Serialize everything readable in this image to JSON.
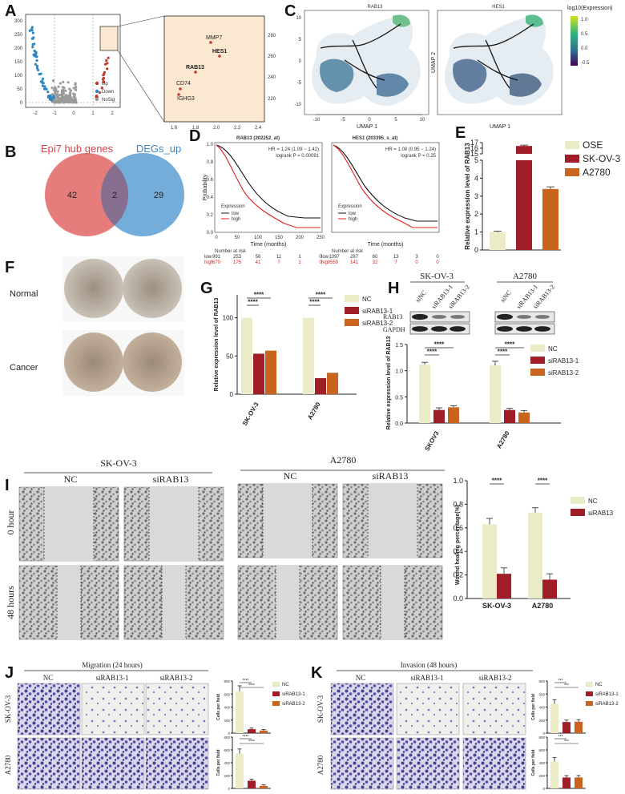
{
  "panels": {
    "A": {
      "letter": "A",
      "legend": [
        "Up",
        "Down",
        "NoSig"
      ],
      "x_ticks": [
        "-2",
        "-1",
        "0",
        "1",
        "2"
      ],
      "y_ticks": [
        "0",
        "50",
        "100",
        "150",
        "200",
        "250",
        "300"
      ],
      "zoom_genes": [
        "MMP7",
        "HES1",
        "RAB13",
        "CD74",
        "IGHG3"
      ],
      "zoom_x_ticks": [
        "1.6",
        "1.8",
        "2.0",
        "2.2",
        "2.4"
      ],
      "zoom_y_ticks": [
        "220",
        "240",
        "260",
        "280"
      ]
    },
    "B": {
      "letter": "B",
      "left_label": "Epi7 hub genes",
      "right_label": "DEGs_up",
      "left_only": "42",
      "overlap": "2",
      "right_only": "29"
    },
    "C": {
      "letter": "C",
      "left_title": "RAB13",
      "right_title": "HES1",
      "xlabel": "UMAP 1",
      "ylabel": "UMAP 2",
      "x_ticks": [
        "-10",
        "-5",
        "0",
        "5",
        "10"
      ],
      "y_ticks": [
        "10",
        "5",
        "0",
        "-5",
        "-10"
      ],
      "colorbar_title": "log10(Expression)",
      "colorbar_ticks": [
        "1.0",
        "0.5",
        "0.0",
        "-0.5"
      ]
    },
    "D": {
      "letter": "D",
      "left": {
        "title": "RAB13 (202252_at)",
        "hr": "HR = 1.24 (1.09 − 1.42)",
        "p": "logrank P = 0.00091",
        "risk_low": [
          "low",
          "991",
          "253",
          "56",
          "11",
          "1",
          "0"
        ],
        "risk_high": [
          "high",
          "670",
          "175",
          "41",
          "7",
          "1",
          "0"
        ]
      },
      "right": {
        "title": "HES1 (203395_s_at)",
        "hr": "HR = 1.08 (0.95 − 1.24)",
        "p": "logrank P = 0.25",
        "risk_low": [
          "low",
          "1097",
          "287",
          "60",
          "13",
          "3",
          "0"
        ],
        "risk_high": [
          "high",
          "559",
          "141",
          "32",
          "7",
          "0",
          "0"
        ]
      },
      "ylabel": "Probability",
      "xlabel": "Time (months)",
      "legend_title": "Expression",
      "legend_low": "low",
      "legend_high": "high",
      "number_at_risk": "Number at risk",
      "x_ticks": [
        "0",
        "50",
        "100",
        "150",
        "200",
        "250"
      ],
      "y_ticks": [
        "0.0",
        "0.2",
        "0.4",
        "0.6",
        "0.8",
        "1.0"
      ]
    },
    "E": {
      "letter": "E"
    },
    "F": {
      "letter": "F",
      "row1": "Normal",
      "row2": "Cancer"
    },
    "G": {
      "letter": "G"
    },
    "H": {
      "letter": "H",
      "blot_groups": [
        "SK-OV-3",
        "A2780"
      ],
      "lane_labels": [
        "siNC",
        "siRAB13-1",
        "siRAB13-2"
      ],
      "bands": [
        "RAB13",
        "GAPDH"
      ]
    },
    "I": {
      "letter": "I",
      "groups": [
        "SK-OV-3",
        "A2780"
      ],
      "conditions": [
        "NC",
        "siRAB13"
      ],
      "rows": [
        "0 hour",
        "48 hours"
      ]
    },
    "J": {
      "letter": "J",
      "title": "Migration (24 hours)",
      "conditions": [
        "NC",
        "siRAB13-1",
        "siRAB13-2"
      ],
      "rows": [
        "SK-OV-3",
        "A2780"
      ]
    },
    "K": {
      "letter": "K",
      "title": "Invasion (48 hours)",
      "conditions": [
        "NC",
        "siRAB13-1",
        "siRAB13-2"
      ],
      "rows": [
        "SK-OV-3",
        "A2780"
      ]
    }
  },
  "chart_data": [
    {
      "id": "E",
      "type": "bar",
      "categories": [
        "OSE",
        "SK-OV-3",
        "A2780"
      ],
      "values": [
        1.0,
        16.4,
        3.4
      ],
      "errors": [
        0.05,
        0.15,
        0.12
      ],
      "legend": [
        "OSE",
        "SK-OV-3",
        "A2780"
      ],
      "ylabel": "Relative expression level of RAB13",
      "y_ticks_low": [
        "0",
        "1",
        "2",
        "3",
        "4",
        "5"
      ],
      "y_ticks_high": [
        "15",
        "16",
        "17"
      ],
      "colors": [
        "#ecebc8",
        "#a01e28",
        "#c8641e"
      ]
    },
    {
      "id": "G",
      "type": "bar",
      "categories": [
        "SK-OV-3",
        "A2780"
      ],
      "series": [
        {
          "name": "NC",
          "values": [
            100,
            100
          ],
          "color": "#ecebc8"
        },
        {
          "name": "siRAB13-1",
          "values": [
            53,
            21
          ],
          "color": "#a01e28"
        },
        {
          "name": "siRAB13-2",
          "values": [
            57,
            28
          ],
          "color": "#c8641e"
        }
      ],
      "ylabel": "Relative expression level of RAB13",
      "y_ticks": [
        "0",
        "50",
        "100"
      ],
      "ylim": [
        0,
        130
      ],
      "significance": [
        "****",
        "****",
        "****",
        "****"
      ]
    },
    {
      "id": "H",
      "type": "bar",
      "categories": [
        "SKOV3",
        "A2780"
      ],
      "series": [
        {
          "name": "NC",
          "values": [
            1.12,
            1.1
          ],
          "errors": [
            0.04,
            0.08
          ],
          "color": "#ecebc8"
        },
        {
          "name": "siRAB13-1",
          "values": [
            0.25,
            0.25
          ],
          "errors": [
            0.04,
            0.03
          ],
          "color": "#a01e28"
        },
        {
          "name": "siRAB13-2",
          "values": [
            0.3,
            0.2
          ],
          "errors": [
            0.03,
            0.04
          ],
          "color": "#c8641e"
        }
      ],
      "ylabel": "Relative expression level of RAB13",
      "y_ticks": [
        "0.0",
        "0.5",
        "1.0",
        "1.5"
      ],
      "ylim": [
        0,
        1.5
      ],
      "significance": [
        "****",
        "****",
        "****",
        "****"
      ]
    },
    {
      "id": "I",
      "type": "bar",
      "categories": [
        "SK-OV-3",
        "A2780"
      ],
      "series": [
        {
          "name": "NC",
          "values": [
            0.63,
            0.73
          ],
          "errors": [
            0.05,
            0.04
          ],
          "color": "#ecebc8"
        },
        {
          "name": "siRAB13",
          "values": [
            0.21,
            0.16
          ],
          "errors": [
            0.05,
            0.05
          ],
          "color": "#a01e28"
        }
      ],
      "ylabel": "Wound healing percentage(%)",
      "y_ticks": [
        "0.0",
        "0.2",
        "0.4",
        "0.6",
        "0.8",
        "1.0"
      ],
      "ylim": [
        0,
        1.0
      ],
      "significance": [
        "****",
        "****"
      ]
    },
    {
      "id": "J-top",
      "type": "bar",
      "categories": [
        "NC",
        "siRAB13-1",
        "siRAB13-2"
      ],
      "values": [
        640,
        60,
        40
      ],
      "ylabel": "Cells per field",
      "y_ticks": [
        "0",
        "200",
        "400",
        "600",
        "800"
      ],
      "ylim": [
        0,
        800
      ],
      "legend": [
        "NC",
        "siRAB13-1",
        "siRAB13-2"
      ],
      "significance": [
        "****",
        "****"
      ]
    },
    {
      "id": "J-bottom",
      "type": "bar",
      "categories": [
        "NC",
        "siRAB13-1",
        "siRAB13-2"
      ],
      "values": [
        540,
        120,
        40
      ],
      "ylabel": "Cells per field",
      "y_ticks": [
        "0",
        "200",
        "400",
        "600",
        "800"
      ],
      "ylim": [
        0,
        800
      ],
      "significance": [
        "****",
        "****"
      ]
    },
    {
      "id": "K-top",
      "type": "bar",
      "categories": [
        "NC",
        "siRAB13-1",
        "siRAB13-2"
      ],
      "values": [
        450,
        170,
        175
      ],
      "ylabel": "Cells per field",
      "y_ticks": [
        "0",
        "200",
        "400",
        "600",
        "800"
      ],
      "ylim": [
        0,
        800
      ],
      "legend": [
        "NC",
        "siRAB13-1",
        "siRAB13-2"
      ],
      "significance": [
        "***",
        "***"
      ]
    },
    {
      "id": "K-bottom",
      "type": "bar",
      "categories": [
        "NC",
        "siRAB13-1",
        "siRAB13-2"
      ],
      "values": [
        420,
        170,
        170
      ],
      "ylabel": "Cells per field",
      "y_ticks": [
        "0",
        "200",
        "400",
        "600",
        "800"
      ],
      "ylim": [
        0,
        800
      ],
      "significance": [
        "***",
        "***"
      ]
    }
  ]
}
